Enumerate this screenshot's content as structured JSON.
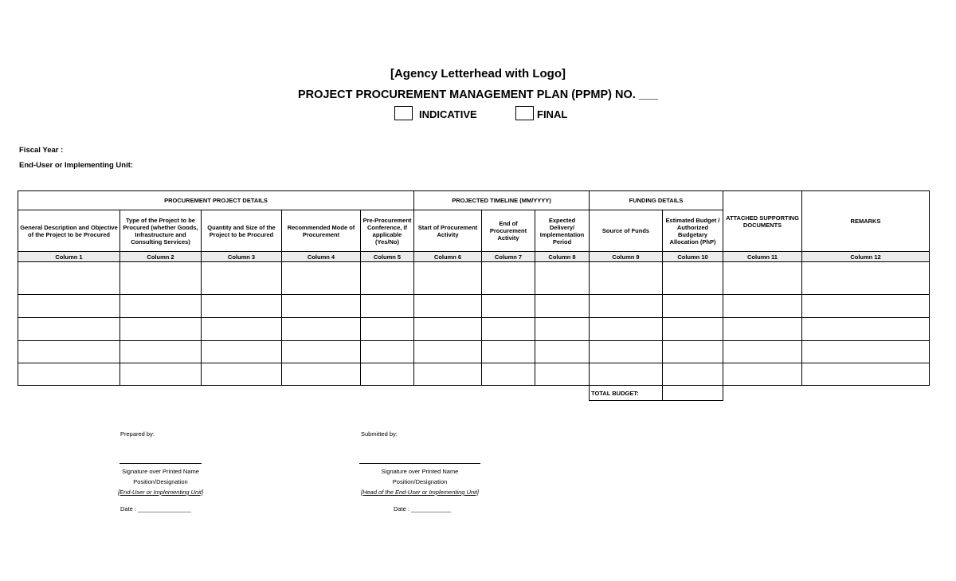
{
  "header": {
    "letterhead": "[Agency Letterhead with Logo]",
    "title": "PROJECT PROCUREMENT MANAGEMENT PLAN (PPMP) NO. ___",
    "indicative_label": "INDICATIVE",
    "final_label": "FINAL",
    "fiscal_year_label": "Fiscal Year :",
    "end_user_label": "End-User or Implementing Unit:"
  },
  "table": {
    "groups": {
      "procurement": "PROCUREMENT PROJECT DETAILS",
      "timeline": "PROJECTED TIMELINE (MM/YYYY)",
      "funding": "FUNDING DETAILS",
      "attached": "ATTACHED SUPPORTING DOCUMENTS",
      "remarks": "REMARKS"
    },
    "subheaders": [
      "General Description and Objective of the Project to be Procured",
      "Type of the Project to be Procured (whether Goods, Infrastructure and Consulting Services)",
      "Quantity and Size of the Project to be Procured",
      "Recommended Mode of Procurement",
      "Pre-Procurement Conference, if applicable (Yes/No)",
      "Start of Procurement Activity",
      "End of Procurement Activity",
      "Expected Delivery/ Implementation Period",
      "Source of Funds",
      "Estimated Budget / Authorized Budgetary Allocation (PhP)"
    ],
    "column_numbers": [
      "Column 1",
      "Column 2",
      "Column 3",
      "Column 4",
      "Column 5",
      "Column 6",
      "Column 7",
      "Column 8",
      "Column 9",
      "Column 10",
      "Column 11",
      "Column 12"
    ],
    "total_budget_label": "TOTAL BUDGET:"
  },
  "signatures": {
    "prepared_by": "Prepared by:",
    "submitted_by": "Submitted by:",
    "signature_label": "Signature over Printed Name",
    "position_label": "Position/Designation",
    "prepared_unit": "[End-User or Implementing Unit]",
    "submitted_unit": "[Head of the End-User or Implementing Unit]",
    "prepared_date": "Date : ________________",
    "submitted_date": "Date : ____________"
  }
}
